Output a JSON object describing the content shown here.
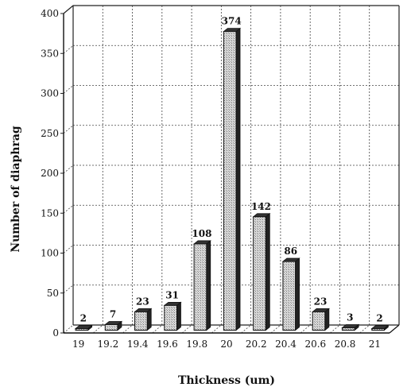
{
  "chart_data": {
    "type": "bar",
    "categories": [
      "19",
      "19.2",
      "19.4",
      "19.6",
      "19.8",
      "20",
      "20.2",
      "20.4",
      "20.6",
      "20.8",
      "21"
    ],
    "values": [
      2,
      7,
      23,
      31,
      108,
      374,
      142,
      86,
      23,
      3,
      2
    ],
    "data_labels": [
      "2",
      "7",
      "23",
      "31",
      "108",
      "374",
      "142",
      "86",
      "23",
      "3",
      "2"
    ],
    "xlabel": "Thickness (um)",
    "ylabel": "Number of diaphrag",
    "ylim": [
      0,
      400
    ],
    "yticks": [
      "0",
      "50",
      "100",
      "150",
      "200",
      "250",
      "300",
      "350",
      "400"
    ],
    "grid": true,
    "style": "3d-bar"
  }
}
